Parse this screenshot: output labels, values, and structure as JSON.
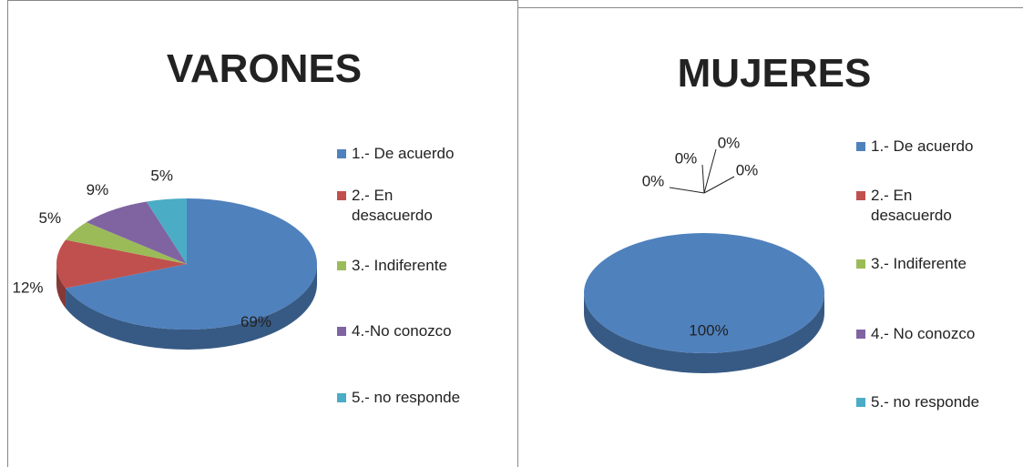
{
  "chart_data": [
    {
      "type": "pie",
      "title": "VARONES",
      "categories": [
        "1.- De acuerdo",
        " 2.- En desacuerdo",
        "3.- Indiferente",
        "4.-No conozco",
        "5.- no responde"
      ],
      "values": [
        69,
        12,
        5,
        9,
        5
      ],
      "value_labels": [
        "69%",
        "12%",
        "5%",
        "9%",
        "5%"
      ],
      "colors": [
        "#4f81bd",
        "#c0504d",
        "#9bbb59",
        "#8064a2",
        "#4bacc6"
      ]
    },
    {
      "type": "pie",
      "title": "MUJERES",
      "categories": [
        "1.- De acuerdo",
        "2.- En desacuerdo",
        "3.- Indiferente",
        "4.- No conozco",
        "5.- no responde"
      ],
      "values": [
        100,
        0,
        0,
        0,
        0
      ],
      "value_labels": [
        "100%",
        "0%",
        "0%",
        "0%",
        "0%"
      ],
      "colors": [
        "#4f81bd",
        "#c0504d",
        "#9bbb59",
        "#8064a2",
        "#4bacc6"
      ]
    }
  ]
}
